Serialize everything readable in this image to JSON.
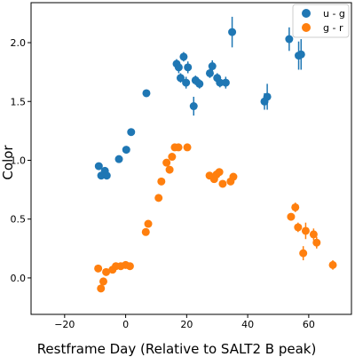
{
  "chart_data": {
    "type": "scatter",
    "xlabel": "Restframe Day (Relative to SALT2 B peak)",
    "ylabel": "Color",
    "xlim": [
      -31,
      74
    ],
    "ylim": [
      -0.31,
      2.34
    ],
    "xticks": [
      -20,
      0,
      20,
      40,
      60
    ],
    "yticks": [
      0.0,
      0.5,
      1.0,
      1.5,
      2.0
    ],
    "xtick_labels": [
      "−20",
      "0",
      "20",
      "40",
      "60"
    ],
    "ytick_labels": [
      "0.0",
      "0.5",
      "1.0",
      "1.5",
      "2.0"
    ],
    "grid": false,
    "legend_position": "top-right",
    "series": [
      {
        "name": "u - g",
        "color": "#1f77b4",
        "points": [
          {
            "x": -8.8,
            "y": 0.95,
            "err": 0.02
          },
          {
            "x": -8.0,
            "y": 0.87,
            "err": 0.02
          },
          {
            "x": -6.8,
            "y": 0.91,
            "err": 0.03
          },
          {
            "x": -6.2,
            "y": 0.87,
            "err": 0.02
          },
          {
            "x": -2.2,
            "y": 1.01,
            "err": 0.02
          },
          {
            "x": 0.2,
            "y": 1.09,
            "err": 0.02
          },
          {
            "x": 1.8,
            "y": 1.24,
            "err": 0.02
          },
          {
            "x": 6.8,
            "y": 1.57,
            "err": 0.02
          },
          {
            "x": 16.7,
            "y": 1.82,
            "err": 0.04
          },
          {
            "x": 17.4,
            "y": 1.79,
            "err": 0.05
          },
          {
            "x": 18.0,
            "y": 1.7,
            "err": 0.04
          },
          {
            "x": 19.0,
            "y": 1.88,
            "err": 0.04
          },
          {
            "x": 19.8,
            "y": 1.66,
            "err": 0.05
          },
          {
            "x": 20.4,
            "y": 1.79,
            "err": 0.05
          },
          {
            "x": 22.3,
            "y": 1.46,
            "err": 0.08
          },
          {
            "x": 22.9,
            "y": 1.68,
            "err": 0.04
          },
          {
            "x": 24.2,
            "y": 1.65,
            "err": 0.04
          },
          {
            "x": 27.6,
            "y": 1.74,
            "err": 0.04
          },
          {
            "x": 28.4,
            "y": 1.8,
            "err": 0.05
          },
          {
            "x": 30.0,
            "y": 1.7,
            "err": 0.04
          },
          {
            "x": 30.9,
            "y": 1.66,
            "err": 0.04
          },
          {
            "x": 32.8,
            "y": 1.66,
            "err": 0.05
          },
          {
            "x": 34.9,
            "y": 2.09,
            "err": 0.13
          },
          {
            "x": 45.5,
            "y": 1.5,
            "err": 0.07
          },
          {
            "x": 46.4,
            "y": 1.54,
            "err": 0.11
          },
          {
            "x": 53.6,
            "y": 2.03,
            "err": 0.1
          },
          {
            "x": 56.7,
            "y": 1.89,
            "err": 0.12
          },
          {
            "x": 57.5,
            "y": 1.9,
            "err": 0.13
          }
        ]
      },
      {
        "name": "g - r",
        "color": "#ff7f0e",
        "points": [
          {
            "x": -9.0,
            "y": 0.08,
            "err": 0.02
          },
          {
            "x": -8.1,
            "y": -0.09,
            "err": 0.02
          },
          {
            "x": -7.3,
            "y": -0.03,
            "err": 0.02
          },
          {
            "x": -6.4,
            "y": 0.05,
            "err": 0.03
          },
          {
            "x": -4.3,
            "y": 0.07,
            "err": 0.02
          },
          {
            "x": -3.2,
            "y": 0.1,
            "err": 0.02
          },
          {
            "x": -1.6,
            "y": 0.1,
            "err": 0.02
          },
          {
            "x": 0.0,
            "y": 0.11,
            "err": 0.02
          },
          {
            "x": 1.4,
            "y": 0.1,
            "err": 0.02
          },
          {
            "x": 6.6,
            "y": 0.39,
            "err": 0.02
          },
          {
            "x": 7.4,
            "y": 0.46,
            "err": 0.02
          },
          {
            "x": 10.8,
            "y": 0.68,
            "err": 0.02
          },
          {
            "x": 11.7,
            "y": 0.82,
            "err": 0.02
          },
          {
            "x": 13.4,
            "y": 0.98,
            "err": 0.02
          },
          {
            "x": 14.4,
            "y": 0.92,
            "err": 0.02
          },
          {
            "x": 15.2,
            "y": 1.03,
            "err": 0.02
          },
          {
            "x": 16.1,
            "y": 1.11,
            "err": 0.02
          },
          {
            "x": 17.3,
            "y": 1.11,
            "err": 0.02
          },
          {
            "x": 20.2,
            "y": 1.11,
            "err": 0.02
          },
          {
            "x": 27.5,
            "y": 0.87,
            "err": 0.02
          },
          {
            "x": 29.0,
            "y": 0.84,
            "err": 0.02
          },
          {
            "x": 29.8,
            "y": 0.88,
            "err": 0.02
          },
          {
            "x": 30.7,
            "y": 0.9,
            "err": 0.02
          },
          {
            "x": 31.8,
            "y": 0.8,
            "err": 0.02
          },
          {
            "x": 34.4,
            "y": 0.82,
            "err": 0.02
          },
          {
            "x": 35.3,
            "y": 0.86,
            "err": 0.02
          },
          {
            "x": 54.2,
            "y": 0.52,
            "err": 0.03
          },
          {
            "x": 55.6,
            "y": 0.6,
            "err": 0.04
          },
          {
            "x": 56.5,
            "y": 0.43,
            "err": 0.04
          },
          {
            "x": 58.2,
            "y": 0.21,
            "err": 0.06
          },
          {
            "x": 59.0,
            "y": 0.4,
            "err": 0.07
          },
          {
            "x": 61.6,
            "y": 0.37,
            "err": 0.05
          },
          {
            "x": 62.6,
            "y": 0.3,
            "err": 0.05
          },
          {
            "x": 67.9,
            "y": 0.11,
            "err": 0.04
          }
        ]
      }
    ]
  }
}
